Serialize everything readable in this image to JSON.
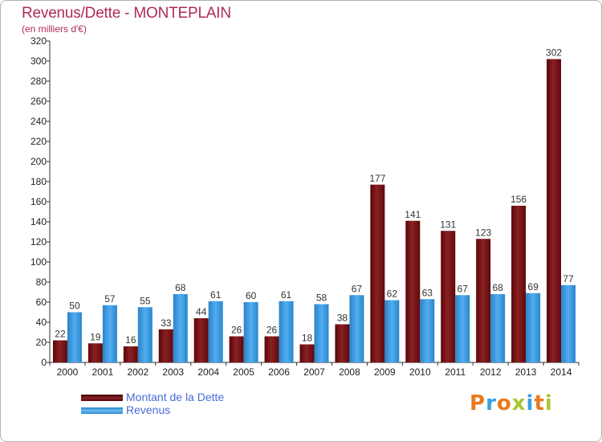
{
  "title": "Revenus/Dette - MONTEPLAIN",
  "subtitle": "(en milliers d'€)",
  "colors": {
    "dette": "#7a1418",
    "revenus": "#3a98dc",
    "title": "#b02a5a"
  },
  "legend": {
    "dette_label": "Montant de la Dette",
    "revenus_label": "Revenus"
  },
  "logo": {
    "text": "Proxiti"
  },
  "chart_data": {
    "type": "bar",
    "categories": [
      "2000",
      "2001",
      "2002",
      "2003",
      "2004",
      "2005",
      "2006",
      "2007",
      "2008",
      "2009",
      "2010",
      "2011",
      "2012",
      "2013",
      "2014"
    ],
    "series": [
      {
        "name": "Montant de la Dette",
        "values": [
          22,
          19,
          16,
          33,
          44,
          26,
          26,
          18,
          38,
          177,
          141,
          131,
          123,
          156,
          302
        ]
      },
      {
        "name": "Revenus",
        "values": [
          50,
          57,
          55,
          68,
          61,
          60,
          61,
          58,
          67,
          62,
          63,
          67,
          68,
          69,
          77
        ]
      }
    ],
    "ylim": [
      0,
      320
    ],
    "yticks": [
      0,
      20,
      40,
      60,
      80,
      100,
      120,
      140,
      160,
      180,
      200,
      220,
      240,
      260,
      280,
      300,
      320
    ],
    "grid": false,
    "legend_position": "bottom-left"
  }
}
